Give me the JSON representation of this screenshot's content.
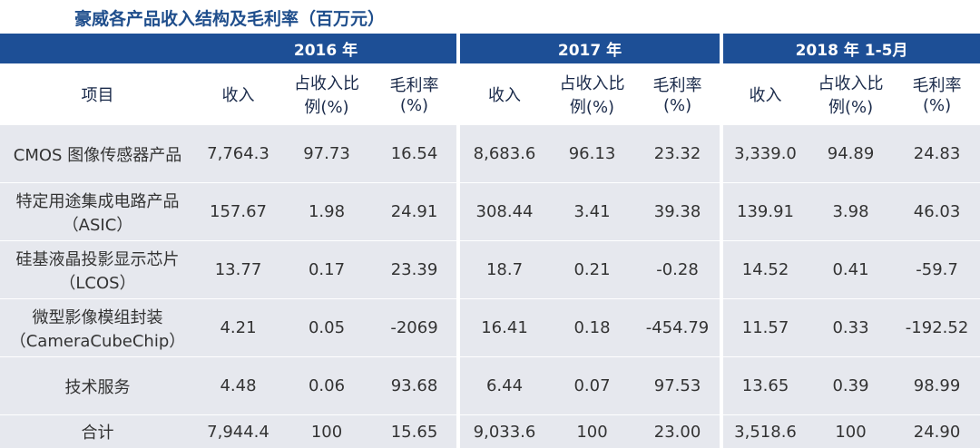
{
  "title": "豪威各产品收入结构及毛利率（百万元）",
  "header": {
    "years": [
      "2016 年",
      "2017  年",
      "2018 年 1-5月"
    ],
    "columns": [
      "项目",
      "收入",
      "占收入比例(%)",
      "毛利率(%)",
      "收入",
      "占收入比例(%)",
      "毛利率(%)",
      "收入",
      "占收入比例(%)",
      "毛利率(%)"
    ]
  },
  "table": {
    "rows": [
      [
        "CMOS 图像传感器产品",
        "7,764.3",
        "97.73",
        "16.54",
        "8,683.6",
        "96.13",
        "23.32",
        "3,339.0",
        "94.89",
        "24.83"
      ],
      [
        "特定用途集成电路产品（ASIC）",
        "157.67",
        "1.98",
        "24.91",
        "308.44",
        "3.41",
        "39.38",
        "139.91",
        "3.98",
        "46.03"
      ],
      [
        "硅基液晶投影显示芯片（LCOS）",
        "13.77",
        "0.17",
        "23.39",
        "18.7",
        "0.21",
        "-0.28",
        "14.52",
        "0.41",
        "-59.7"
      ],
      [
        "微型影像模组封装（CameraCubeChip）",
        "4.21",
        "0.05",
        "-2069",
        "16.41",
        "0.18",
        "-454.79",
        "11.57",
        "0.33",
        "-192.52"
      ],
      [
        "技术服务",
        "4.48",
        "0.06",
        "93.68",
        "6.44",
        "0.07",
        "97.53",
        "13.65",
        "0.39",
        "98.99"
      ],
      [
        "合计",
        "7,944.4",
        "100",
        "15.65",
        "9,033.6",
        "100",
        "23.00",
        "3,518.6",
        "100",
        "24.90"
      ]
    ]
  }
}
